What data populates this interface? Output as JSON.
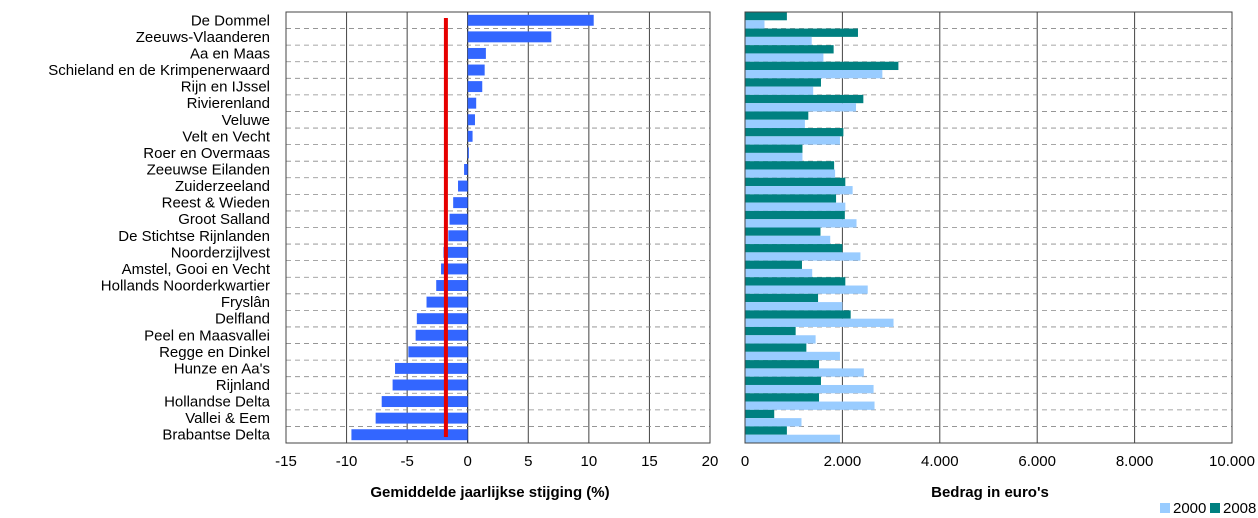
{
  "chart_data": [
    {
      "type": "bar",
      "orientation": "horizontal",
      "categories": [
        "De Dommel",
        "Zeeuws-Vlaanderen",
        "Aa en Maas",
        "Schieland en de Krimpenerwaard",
        "Rijn en IJssel",
        "Rivierenland",
        "Veluwe",
        "Velt en Vecht",
        "Roer en Overmaas",
        "Zeeuwse Eilanden",
        "Zuiderzeeland",
        "Reest & Wieden",
        "Groot Salland",
        "De Stichtse Rijnlanden",
        "Noorderzijlvest",
        "Amstel, Gooi en Vecht",
        "Hollands Noorderkwartier",
        "Fryslân",
        "Delfland",
        "Peel en Maasvallei",
        "Regge en Dinkel",
        "Hunze en Aa's",
        "Rijnland",
        "Hollandse Delta",
        "Vallei & Eem",
        "Brabantse Delta"
      ],
      "values": [
        10.4,
        6.9,
        1.5,
        1.4,
        1.2,
        0.7,
        0.6,
        0.4,
        0.1,
        -0.3,
        -0.8,
        -1.2,
        -1.5,
        -1.6,
        -2.0,
        -2.2,
        -2.6,
        -3.4,
        -4.2,
        -4.3,
        -4.9,
        -6.0,
        -6.2,
        -7.1,
        -7.6,
        -9.6
      ],
      "xlabel": "Gemiddelde jaarlijkse stijging (%)",
      "xlim": [
        -15,
        20
      ],
      "xticks": [
        "-15",
        "-10",
        "-5",
        "0",
        "5",
        "10",
        "15",
        "20"
      ],
      "reference_line": -1.8,
      "colors": {
        "bar": "#3366ff",
        "reference": "#e60000",
        "grid": "#555555"
      }
    },
    {
      "type": "bar",
      "orientation": "horizontal",
      "categories": [
        "De Dommel",
        "Zeeuws-Vlaanderen",
        "Aa en Maas",
        "Schieland en de Krimpenerwaard",
        "Rijn en IJssel",
        "Rivierenland",
        "Veluwe",
        "Velt en Vecht",
        "Roer en Overmaas",
        "Zeeuwse Eilanden",
        "Zuiderzeeland",
        "Reest & Wieden",
        "Groot Salland",
        "De Stichtse Rijnlanden",
        "Noorderzijlvest",
        "Amstel, Gooi en Vecht",
        "Hollands Noorderkwartier",
        "Fryslân",
        "Delfland",
        "Peel en Maasvallei",
        "Regge en Dinkel",
        "Hunze en Aa's",
        "Rijnland",
        "Hollandse Delta",
        "Vallei & Eem",
        "Brabantse Delta"
      ],
      "series": [
        {
          "name": "2008",
          "color": "#008080",
          "values": [
            860,
            2320,
            1820,
            3150,
            1560,
            2430,
            1300,
            2020,
            1180,
            1830,
            2060,
            1870,
            2050,
            1550,
            2000,
            1170,
            2060,
            1500,
            2170,
            1040,
            1260,
            1520,
            1560,
            1520,
            600,
            860
          ]
        },
        {
          "name": "2000",
          "color": "#99ccff",
          "values": [
            400,
            1370,
            1610,
            2820,
            1400,
            2280,
            1230,
            1950,
            1180,
            1850,
            2210,
            2060,
            2290,
            1750,
            2370,
            1380,
            2520,
            2000,
            3050,
            1450,
            1950,
            2440,
            2640,
            2660,
            1160,
            1950
          ]
        }
      ],
      "xlabel": "Bedrag in euro's",
      "xlim": [
        0,
        10000
      ],
      "xticks": [
        "0",
        "2.000",
        "4.000",
        "6.000",
        "8.000",
        "10.000"
      ],
      "legend": {
        "position": "bottom-right",
        "labels": [
          "2000",
          "2008"
        ]
      }
    }
  ]
}
